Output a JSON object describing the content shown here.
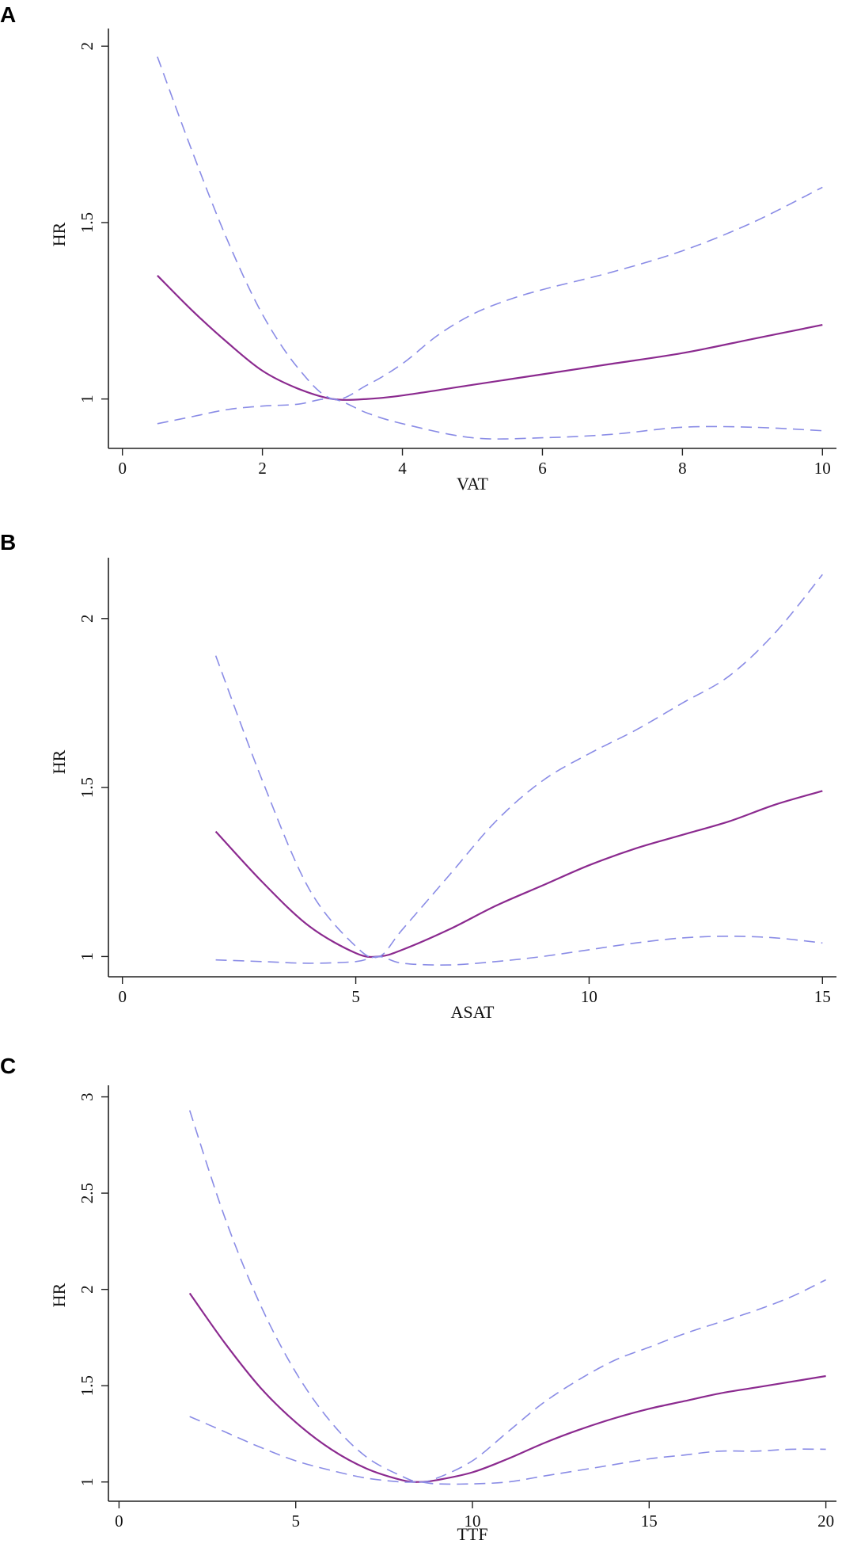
{
  "chart_data": [
    {
      "type": "line",
      "panel_label": "A",
      "xlabel": "VAT",
      "ylabel": "HR",
      "xlim": [
        -0.2,
        10.2
      ],
      "ylim": [
        0.86,
        2.05
      ],
      "xticks": [
        0,
        2,
        4,
        6,
        8,
        10
      ],
      "yticks": [
        1,
        1.5,
        2
      ],
      "series": [
        {
          "role": "estimate",
          "color": "#8b2a8f",
          "x": [
            0.5,
            1,
            1.5,
            2,
            2.5,
            3,
            3.5,
            4,
            5,
            6,
            7,
            8,
            9,
            10
          ],
          "values": [
            1.35,
            1.25,
            1.16,
            1.08,
            1.03,
            1.0,
            1.0,
            1.01,
            1.04,
            1.07,
            1.1,
            1.13,
            1.17,
            1.21
          ]
        },
        {
          "role": "upper",
          "color": "#8a8ce6",
          "x": [
            0.5,
            1,
            1.5,
            2,
            2.5,
            3,
            3.5,
            4,
            4.5,
            5,
            5.5,
            6,
            7,
            8,
            9,
            10
          ],
          "values": [
            1.97,
            1.7,
            1.45,
            1.24,
            1.09,
            1.0,
            1.04,
            1.1,
            1.18,
            1.24,
            1.28,
            1.31,
            1.36,
            1.42,
            1.5,
            1.6
          ]
        },
        {
          "role": "lower",
          "color": "#8a8ce6",
          "x": [
            0.5,
            1,
            1.5,
            2,
            2.5,
            3,
            3.5,
            4,
            5,
            6,
            7,
            8,
            9,
            10
          ],
          "values": [
            0.93,
            0.95,
            0.97,
            0.98,
            0.985,
            1.0,
            0.96,
            0.93,
            0.89,
            0.89,
            0.9,
            0.92,
            0.92,
            0.91
          ]
        }
      ]
    },
    {
      "type": "line",
      "panel_label": "B",
      "xlabel": "ASAT",
      "ylabel": "HR",
      "xlim": [
        -0.3,
        15.3
      ],
      "ylim": [
        0.94,
        2.18
      ],
      "xticks": [
        0,
        5,
        10,
        15
      ],
      "yticks": [
        1,
        1.5,
        2
      ],
      "series": [
        {
          "role": "estimate",
          "color": "#8b2a8f",
          "x": [
            2,
            3,
            4,
            5,
            5.5,
            6,
            7,
            8,
            9,
            10,
            11,
            12,
            13,
            14,
            15
          ],
          "values": [
            1.37,
            1.22,
            1.09,
            1.01,
            1.0,
            1.02,
            1.08,
            1.15,
            1.21,
            1.27,
            1.32,
            1.36,
            1.4,
            1.45,
            1.49
          ]
        },
        {
          "role": "upper",
          "color": "#8a8ce6",
          "x": [
            2,
            3,
            4,
            5,
            5.5,
            6,
            7,
            8,
            9,
            10,
            11,
            12,
            13,
            14,
            15
          ],
          "values": [
            1.89,
            1.52,
            1.2,
            1.03,
            1.0,
            1.08,
            1.24,
            1.4,
            1.52,
            1.6,
            1.67,
            1.75,
            1.83,
            1.96,
            2.13
          ]
        },
        {
          "role": "lower",
          "color": "#8a8ce6",
          "x": [
            2,
            3,
            4,
            5,
            5.5,
            6,
            7,
            8,
            9,
            10,
            11,
            12,
            13,
            14,
            15
          ],
          "values": [
            0.99,
            0.985,
            0.98,
            0.985,
            1.0,
            0.98,
            0.975,
            0.985,
            1.0,
            1.02,
            1.04,
            1.055,
            1.06,
            1.055,
            1.04
          ]
        }
      ]
    },
    {
      "type": "line",
      "panel_label": "C",
      "xlabel": "TTF",
      "ylabel": "HR",
      "xlim": [
        -0.3,
        20.3
      ],
      "ylim": [
        0.9,
        3.06
      ],
      "xticks": [
        0,
        5,
        10,
        15,
        20
      ],
      "yticks": [
        1,
        1.5,
        2,
        2.5,
        3
      ],
      "series": [
        {
          "role": "estimate",
          "color": "#8b2a8f",
          "x": [
            2,
            3,
            4,
            5,
            6,
            7,
            8,
            8.5,
            9,
            10,
            11,
            12,
            13,
            14,
            15,
            16,
            17,
            18,
            19,
            20
          ],
          "values": [
            1.98,
            1.72,
            1.49,
            1.31,
            1.17,
            1.07,
            1.01,
            1.0,
            1.01,
            1.05,
            1.12,
            1.2,
            1.27,
            1.33,
            1.38,
            1.42,
            1.46,
            1.49,
            1.52,
            1.55
          ]
        },
        {
          "role": "upper",
          "color": "#8a8ce6",
          "x": [
            2,
            3,
            4,
            5,
            6,
            7,
            8,
            8.5,
            9,
            10,
            11,
            12,
            13,
            14,
            15,
            16,
            17,
            18,
            19,
            20
          ],
          "values": [
            2.93,
            2.37,
            1.92,
            1.57,
            1.31,
            1.13,
            1.03,
            1.0,
            1.02,
            1.11,
            1.26,
            1.41,
            1.53,
            1.63,
            1.7,
            1.77,
            1.83,
            1.89,
            1.96,
            2.05
          ]
        },
        {
          "role": "lower",
          "color": "#8a8ce6",
          "x": [
            2,
            3,
            4,
            5,
            6,
            7,
            8,
            8.5,
            9,
            10,
            11,
            12,
            13,
            14,
            15,
            16,
            17,
            18,
            19,
            20
          ],
          "values": [
            1.34,
            1.26,
            1.18,
            1.11,
            1.06,
            1.02,
            1.0,
            1.0,
            0.99,
            0.99,
            1.0,
            1.03,
            1.06,
            1.09,
            1.12,
            1.14,
            1.16,
            1.16,
            1.17,
            1.17
          ]
        }
      ]
    }
  ]
}
